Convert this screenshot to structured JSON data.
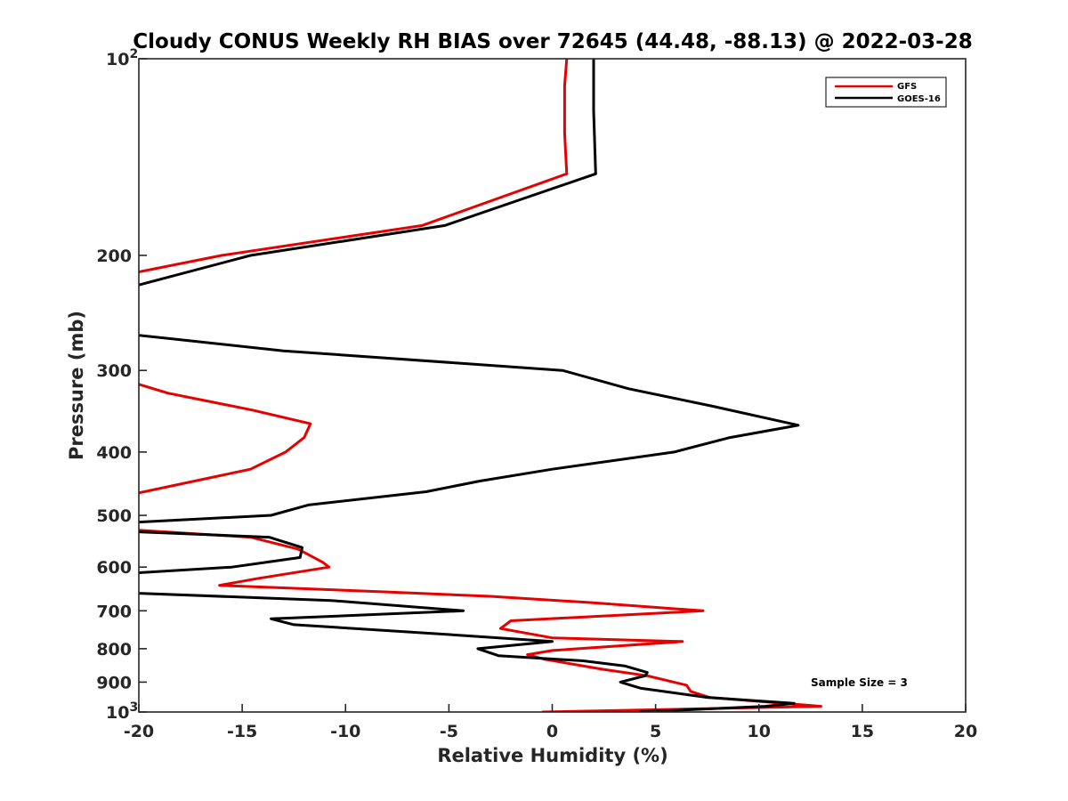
{
  "chart_data": {
    "type": "line",
    "title": "Cloudy CONUS Weekly RH BIAS over 72645 (44.48, -88.13) @ 2022-03-28",
    "xlabel": "Relative Humidity (%)",
    "ylabel": "Pressure (mb)",
    "xlim": [
      -20,
      20
    ],
    "ylim": [
      100,
      1000
    ],
    "y_scale": "log",
    "y_reversed": true,
    "x_ticks": [
      -20,
      -15,
      -10,
      -5,
      0,
      5,
      10,
      15,
      20
    ],
    "x_tick_labels": [
      "-20",
      "-15",
      "-10",
      "-5",
      "0",
      "5",
      "10",
      "15",
      "20"
    ],
    "y_ticks": [
      100,
      200,
      300,
      400,
      500,
      600,
      700,
      800,
      900,
      1000
    ],
    "y_tick_labels": [
      {
        "base": "10",
        "exp": "2"
      },
      {
        "base": "200",
        "exp": ""
      },
      {
        "base": "300",
        "exp": ""
      },
      {
        "base": "400",
        "exp": ""
      },
      {
        "base": "500",
        "exp": ""
      },
      {
        "base": "600",
        "exp": ""
      },
      {
        "base": "700",
        "exp": ""
      },
      {
        "base": "800",
        "exp": ""
      },
      {
        "base": "900",
        "exp": ""
      },
      {
        "base": "10",
        "exp": "3"
      }
    ],
    "grid": false,
    "legend_position": "top-right",
    "annotation": "Sample Size = 3",
    "series": [
      {
        "name": "GFS",
        "color": "#e60000",
        "points": [
          [
            0.7,
            100
          ],
          [
            0.6,
            110
          ],
          [
            0.6,
            130
          ],
          [
            0.7,
            150
          ],
          [
            -6.3,
            180
          ],
          [
            -16.0,
            200
          ],
          [
            -20.0,
            212
          ],
          [
            null,
            null
          ],
          [
            -20.0,
            315
          ],
          [
            -18.6,
            325
          ],
          [
            -14.5,
            345
          ],
          [
            -11.7,
            362
          ],
          [
            -12.0,
            380
          ],
          [
            -12.9,
            400
          ],
          [
            -14.6,
            425
          ],
          [
            -20.0,
            462
          ],
          [
            null,
            null
          ],
          [
            -20.0,
            527
          ],
          [
            -14.6,
            540
          ],
          [
            -12.3,
            563
          ],
          [
            -11.1,
            590
          ],
          [
            -10.8,
            600
          ],
          [
            -14.3,
            625
          ],
          [
            -16.1,
            640
          ],
          [
            -8.0,
            655
          ],
          [
            -3.0,
            665
          ],
          [
            1.9,
            680
          ],
          [
            7.3,
            700
          ],
          [
            -2.0,
            725
          ],
          [
            -2.5,
            745
          ],
          [
            0.0,
            770
          ],
          [
            6.3,
            780
          ],
          [
            0.0,
            805
          ],
          [
            -1.2,
            817
          ],
          [
            -0.4,
            830
          ],
          [
            2.4,
            860
          ],
          [
            4.6,
            880
          ],
          [
            6.5,
            910
          ],
          [
            6.7,
            930
          ],
          [
            7.6,
            950
          ],
          [
            13.0,
            980
          ],
          [
            -0.5,
            1000
          ]
        ]
      },
      {
        "name": "GOES-16",
        "color": "#000000",
        "points": [
          [
            2.0,
            100
          ],
          [
            2.0,
            120
          ],
          [
            2.1,
            150
          ],
          [
            -5.2,
            180
          ],
          [
            -14.6,
            200
          ],
          [
            -20.0,
            222
          ],
          [
            null,
            null
          ],
          [
            -20.0,
            265
          ],
          [
            -13.0,
            280
          ],
          [
            0.5,
            300
          ],
          [
            3.7,
            320
          ],
          [
            7.7,
            340
          ],
          [
            11.9,
            364
          ],
          [
            8.6,
            380
          ],
          [
            5.9,
            400
          ],
          [
            0.0,
            425
          ],
          [
            -3.5,
            443
          ],
          [
            -6.1,
            460
          ],
          [
            -11.8,
            482
          ],
          [
            -13.6,
            500
          ],
          [
            -20.0,
            512
          ],
          [
            null,
            null
          ],
          [
            -20.0,
            530
          ],
          [
            -13.7,
            540
          ],
          [
            -12.1,
            560
          ],
          [
            -12.2,
            580
          ],
          [
            -15.5,
            600
          ],
          [
            -20.0,
            612
          ],
          [
            null,
            null
          ],
          [
            -20.0,
            658
          ],
          [
            -10.7,
            675
          ],
          [
            -4.3,
            700
          ],
          [
            -13.6,
            720
          ],
          [
            -12.5,
            735
          ],
          [
            -5.3,
            760
          ],
          [
            0.0,
            780
          ],
          [
            -3.6,
            800
          ],
          [
            -2.6,
            820
          ],
          [
            1.5,
            835
          ],
          [
            3.5,
            850
          ],
          [
            4.6,
            870
          ],
          [
            4.5,
            880
          ],
          [
            3.3,
            900
          ],
          [
            4.3,
            920
          ],
          [
            7.5,
            950
          ],
          [
            11.7,
            970
          ],
          [
            10.3,
            980
          ],
          [
            4.2,
            1000
          ]
        ]
      }
    ]
  }
}
